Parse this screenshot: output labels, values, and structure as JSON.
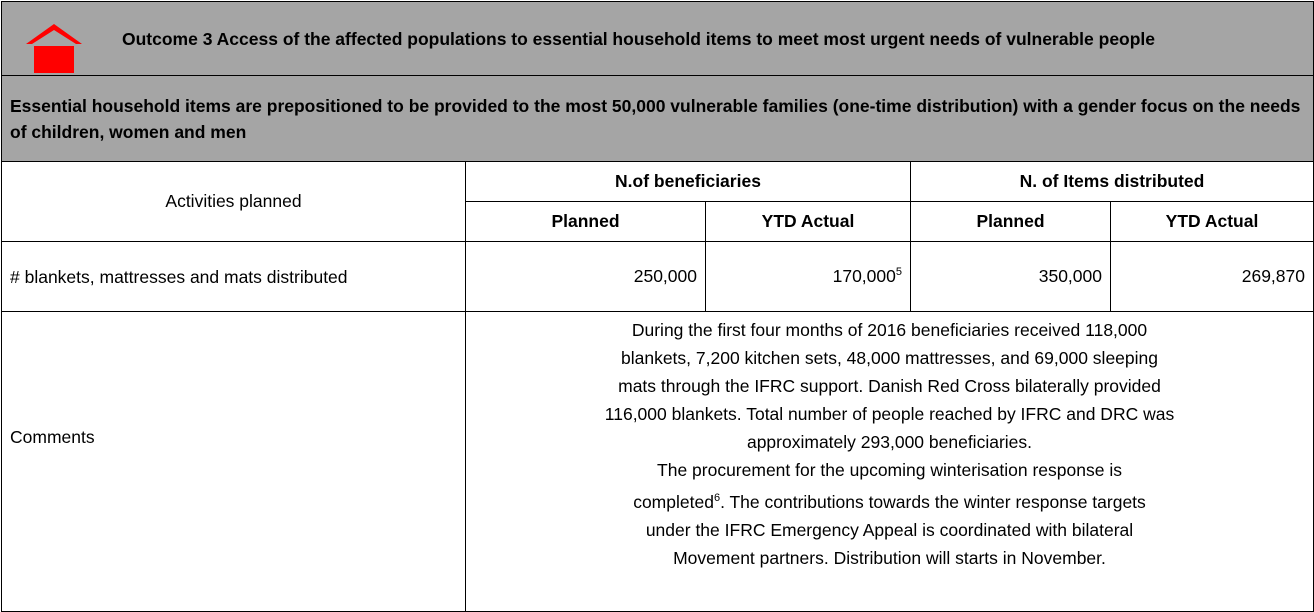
{
  "header": {
    "title": "Outcome 3 Access of the affected populations to essential household items to meet most urgent needs of vulnerable people",
    "output": "Essential household items are prepositioned to be provided to the most 50,000 vulnerable families (one-time distribution) with a gender focus on the needs of children, women and men"
  },
  "table": {
    "columns": {
      "activities": "Activities planned",
      "beneficiaries": "N.of beneficiaries",
      "items": "N. of Items distributed",
      "planned": "Planned",
      "actual": "YTD Actual"
    },
    "row": {
      "activity": "# blankets, mattresses and mats distributed",
      "beneficiaries_planned": "250,000",
      "beneficiaries_actual": "170,000",
      "beneficiaries_actual_note": "5",
      "items_planned": "350,000",
      "items_actual": "269,870"
    },
    "comments": {
      "label": "Comments",
      "lines": [
        "During the first four months of 2016 beneficiaries received 118,000",
        "blankets, 7,200 kitchen sets, 48,000 mattresses, and 69,000 sleeping",
        "mats through the IFRC support. Danish Red Cross bilaterally provided",
        "116,000 blankets. Total number of people reached by IFRC and DRC was",
        "approximately 293,000 beneficiaries.",
        "The procurement for the upcoming winterisation response is"
      ],
      "note_line": {
        "before": "completed",
        "note": "6",
        "after": ". The contributions towards the winter response targets"
      },
      "more_lines": [
        "under the IFRC Emergency Appeal is coordinated with bilateral",
        "Movement partners. Distribution will starts in November."
      ]
    }
  }
}
